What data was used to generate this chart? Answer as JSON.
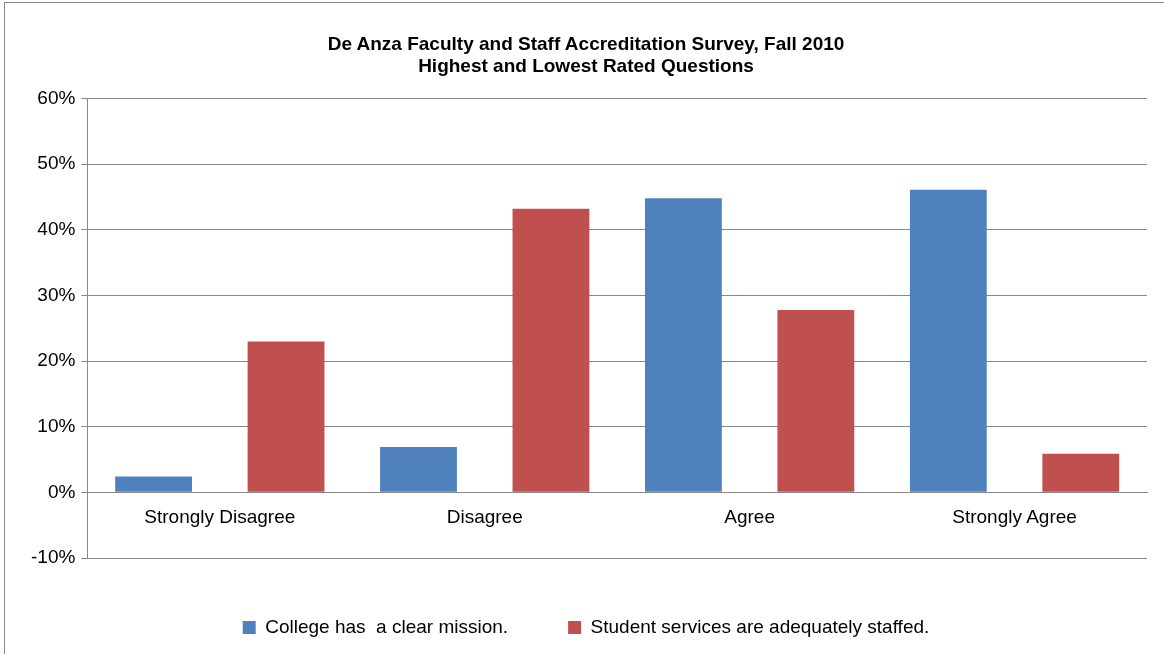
{
  "chart_data": {
    "type": "bar",
    "title": [
      "De Anza Faculty and Staff Accreditation Survey, Fall 2010",
      "Highest and Lowest Rated Questions"
    ],
    "categories": [
      "Strongly Disagree",
      "Disagree",
      "Agree",
      "Strongly Agree"
    ],
    "series": [
      {
        "name": "College has  a clear mission.",
        "color": "#4f81bd",
        "values": [
          2.4,
          6.9,
          44.8,
          46.1
        ]
      },
      {
        "name": "Student services are adequately staffed.",
        "color": "#c0504d",
        "values": [
          23.0,
          43.2,
          27.8,
          5.9
        ]
      }
    ],
    "ylim": [
      -10,
      60
    ],
    "yticks": [
      {
        "value": -10,
        "label": "-10%"
      },
      {
        "value": 0,
        "label": "0%"
      },
      {
        "value": 10,
        "label": "10%"
      },
      {
        "value": 20,
        "label": "20%"
      },
      {
        "value": 30,
        "label": "30%"
      },
      {
        "value": 40,
        "label": "40%"
      },
      {
        "value": 50,
        "label": "50%"
      },
      {
        "value": 60,
        "label": "60%"
      }
    ],
    "grid": "y",
    "legend": "bottom"
  }
}
